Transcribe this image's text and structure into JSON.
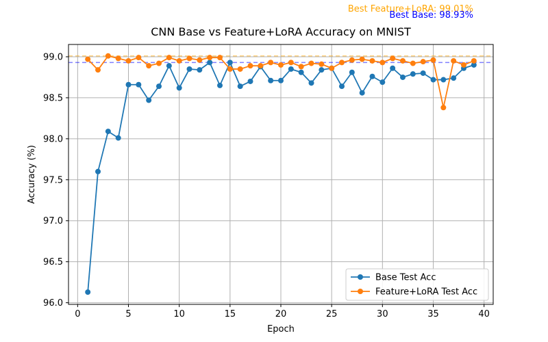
{
  "chart_data": {
    "type": "line",
    "title": "CNN Base vs Feature+LoRA Accuracy on MNIST",
    "xlabel": "Epoch",
    "ylabel": "Accuracy (%)",
    "xlim": [
      -0.9,
      40.9
    ],
    "ylim": [
      95.98,
      99.15
    ],
    "xticks": [
      0,
      5,
      10,
      15,
      20,
      25,
      30,
      35,
      40
    ],
    "yticks": [
      96.0,
      96.5,
      97.0,
      97.5,
      98.0,
      98.5,
      99.0
    ],
    "grid": true,
    "legend_position": "lower-right",
    "x": [
      1,
      2,
      3,
      4,
      5,
      6,
      7,
      8,
      9,
      10,
      11,
      12,
      13,
      14,
      15,
      16,
      17,
      18,
      19,
      20,
      21,
      22,
      23,
      24,
      25,
      26,
      27,
      28,
      29,
      30,
      31,
      32,
      33,
      34,
      35,
      36,
      37,
      38,
      39
    ],
    "series": [
      {
        "name": "Base Test Acc",
        "color": "#1f77b4",
        "values": [
          96.13,
          97.6,
          98.09,
          98.01,
          98.66,
          98.66,
          98.47,
          98.64,
          98.89,
          98.62,
          98.85,
          98.84,
          98.93,
          98.65,
          98.93,
          98.64,
          98.7,
          98.88,
          98.71,
          98.71,
          98.85,
          98.81,
          98.68,
          98.84,
          98.86,
          98.64,
          98.81,
          98.56,
          98.76,
          98.69,
          98.86,
          98.75,
          98.79,
          98.8,
          98.72,
          98.72,
          98.74,
          98.86,
          98.9
        ]
      },
      {
        "name": "Feature+LoRA Test Acc",
        "color": "#ff7f0e",
        "values": [
          98.97,
          98.84,
          99.01,
          98.98,
          98.95,
          98.99,
          98.89,
          98.92,
          98.99,
          98.95,
          98.98,
          98.96,
          98.99,
          98.99,
          98.85,
          98.85,
          98.89,
          98.89,
          98.93,
          98.9,
          98.93,
          98.88,
          98.92,
          98.91,
          98.86,
          98.93,
          98.96,
          98.97,
          98.95,
          98.93,
          98.98,
          98.95,
          98.92,
          98.94,
          98.96,
          98.38,
          98.95,
          98.9,
          98.95
        ]
      }
    ],
    "reference_lines": [
      {
        "label": "Best Base: 98.93%",
        "value": 98.93,
        "color": "#0000ff"
      },
      {
        "label": "Best Feature+LoRA: 99.01%",
        "value": 99.01,
        "color": "#ffa500"
      }
    ]
  }
}
